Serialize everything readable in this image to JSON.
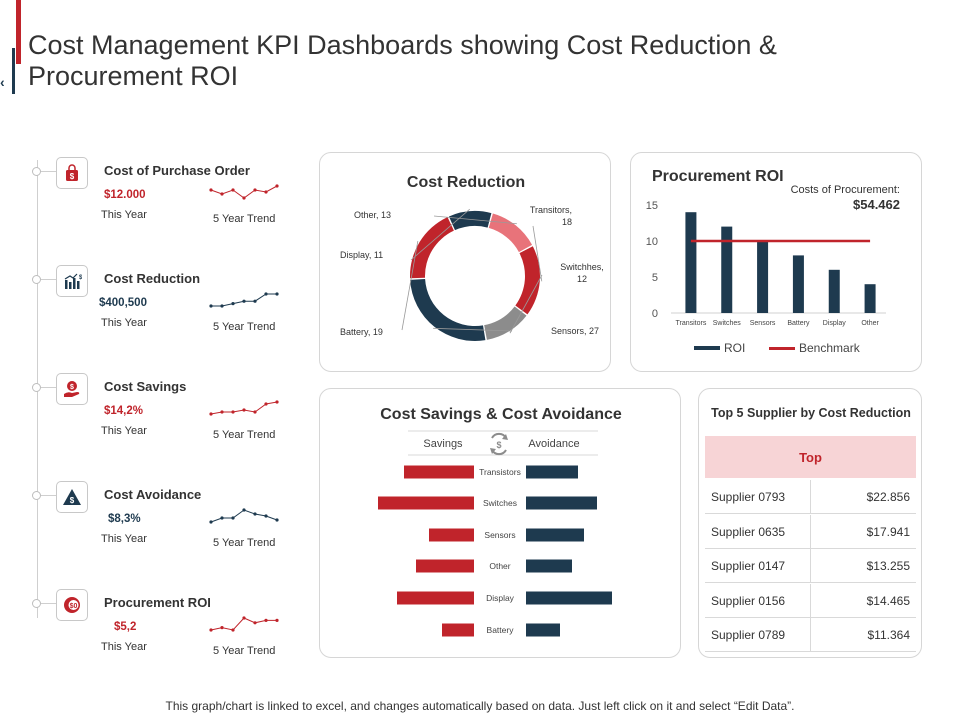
{
  "title": "Cost Management KPI Dashboards showing Cost Reduction & Procurement ROI",
  "colors": {
    "red": "#c0242b",
    "navy": "#1e3a4f",
    "gray": "#8c8c8c",
    "pink": "#e8737a"
  },
  "kpis": [
    {
      "icon": "shopping-bag-icon",
      "title": "Cost of Purchase Order",
      "value": "$12.000",
      "value_color": "red",
      "sub": "This Year",
      "trend_label": "5 Year Trend",
      "trend": [
        3,
        2,
        3,
        1,
        3,
        2.5,
        4
      ]
    },
    {
      "icon": "bar-chart-dollar-icon",
      "title": "Cost Reduction",
      "value": "$400,500",
      "value_color": "navy",
      "sub": "This Year",
      "trend_label": "5 Year Trend",
      "trend": [
        1,
        1,
        1.5,
        2,
        2,
        3.5,
        3.5
      ]
    },
    {
      "icon": "hand-coin-icon",
      "title": "Cost Savings",
      "value": "$14,2%",
      "value_color": "red",
      "sub": "This Year",
      "trend_label": "5 Year Trend",
      "trend": [
        1,
        1.5,
        1.5,
        2,
        1.5,
        3.5,
        4
      ]
    },
    {
      "icon": "warning-triangle-icon",
      "title": "Cost Avoidance",
      "value": "$8,3%",
      "value_color": "navy",
      "sub": "This Year",
      "trend_label": "5 Year Trend",
      "trend": [
        1,
        2,
        2,
        4,
        3,
        2.5,
        1.5
      ]
    },
    {
      "icon": "dollar-target-icon",
      "title": "Procurement  ROI",
      "value": "$5,2",
      "value_color": "red",
      "sub": "This Year",
      "trend_label": "5 Year Trend",
      "trend": [
        1,
        1.5,
        1,
        3.5,
        2.5,
        3,
        3
      ]
    }
  ],
  "cost_reduction": {
    "title": "Cost Reduction",
    "chart_data": {
      "type": "pie",
      "donut": true,
      "title": "Cost Reduction",
      "slices": [
        {
          "label": "Transitors,\n18",
          "value": 18,
          "color": "#c0242b"
        },
        {
          "label": "Switchhes,\n12",
          "value": 12,
          "color": "#8c8c8c"
        },
        {
          "label": "Sensors, 27",
          "value": 27,
          "color": "#1e3a4f"
        },
        {
          "label": "Battery, 19",
          "value": 19,
          "color": "#c0242b"
        },
        {
          "label": "Display, 11",
          "value": 11,
          "color": "#1e3a4f"
        },
        {
          "label": "Other, 13",
          "value": 13,
          "color": "#e8737a"
        }
      ]
    }
  },
  "procurement_roi": {
    "title": "Procurement ROI",
    "costs_label": "Costs of Procurement:",
    "costs_value": "$54.462",
    "chart_data": {
      "type": "bar",
      "categories": [
        "Transitors",
        "Switches",
        "Sensors",
        "Battery",
        "Display",
        "Other"
      ],
      "series": [
        {
          "name": "ROI",
          "values": [
            14,
            12,
            10,
            8,
            6,
            4
          ],
          "color": "#1e3a4f"
        },
        {
          "name": "Benchmark",
          "type": "line",
          "values": [
            10,
            10,
            10,
            10,
            10,
            10
          ],
          "color": "#c0242b"
        }
      ],
      "ylim": [
        0,
        15
      ],
      "yticks": [
        0,
        5,
        10,
        15
      ],
      "legend": "bottom"
    }
  },
  "savings_avoidance": {
    "title": "Cost Savings & Cost Avoidance",
    "left_label": "Savings",
    "right_label": "Avoidance",
    "icon": "refresh-dollar-icon",
    "chart_data": {
      "type": "bar",
      "orientation": "horizontal-diverging",
      "categories": [
        "Transistors",
        "Switches",
        "Sensors",
        "Other",
        "Display",
        "Battery"
      ],
      "series": [
        {
          "name": "Savings",
          "values": [
            70,
            96,
            45,
            58,
            77,
            32
          ],
          "color": "#c0242b"
        },
        {
          "name": "Avoidance",
          "values": [
            52,
            71,
            58,
            46,
            86,
            34
          ],
          "color": "#1e3a4f"
        }
      ]
    }
  },
  "suppliers": {
    "title": "Top 5 Supplier by Cost Reduction",
    "header": "Top",
    "rows": [
      {
        "name": "Supplier 0793",
        "value": "$22.856"
      },
      {
        "name": "Supplier 0635",
        "value": "$17.941"
      },
      {
        "name": "Supplier 0147",
        "value": "$13.255"
      },
      {
        "name": "Supplier 0156",
        "value": "$14.465"
      },
      {
        "name": "Supplier 0789",
        "value": "$11.364"
      }
    ]
  },
  "footer": "This graph/chart  is linked to excel, and changes automatically  based on data.  Just left click on it and select “Edit Data”."
}
